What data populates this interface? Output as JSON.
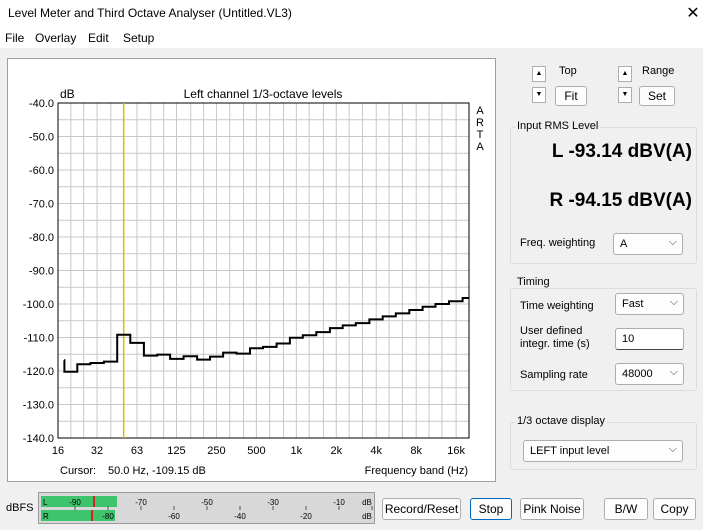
{
  "window": {
    "title": "Level Meter and Third Octave Analyser (Untitled.VL3)",
    "close_glyph": "✕"
  },
  "menu": [
    "File",
    "Overlay",
    "Edit",
    "Setup"
  ],
  "plot": {
    "unit_label": "dB",
    "title": "Left channel 1/3-octave levels",
    "arta_letters": [
      "A",
      "R",
      "T",
      "A"
    ],
    "cursor_text": "Cursor:",
    "cursor_value": "50.0 Hz, -109.15 dB",
    "xlabel": "Frequency band (Hz)",
    "colors": {
      "trace": "#000000",
      "cursor": "#d4c400",
      "grid": "#c8c8c8"
    }
  },
  "chart_data": {
    "type": "line",
    "step": true,
    "title": "Left channel 1/3-octave levels",
    "xlabel": "Frequency band (Hz)",
    "ylabel": "dB",
    "ylim": [
      -140,
      -40
    ],
    "yticks": [
      "-40.0",
      "-50.0",
      "-60.0",
      "-70.0",
      "-80.0",
      "-90.0",
      "-100.0",
      "-110.0",
      "-120.0",
      "-130.0",
      "-140.0"
    ],
    "xticks": [
      "16",
      "32",
      "63",
      "125",
      "250",
      "500",
      "1k",
      "2k",
      "4k",
      "8k",
      "16k"
    ],
    "grid": true,
    "cursor_hz": 50,
    "x": [
      16,
      20,
      25,
      31.5,
      40,
      50,
      63,
      80,
      100,
      125,
      160,
      200,
      250,
      315,
      400,
      500,
      630,
      800,
      1000,
      1250,
      1600,
      2000,
      2500,
      3150,
      4000,
      5000,
      6300,
      8000,
      10000,
      12500,
      16000,
      20000
    ],
    "series": [
      {
        "values": [
          -116.8,
          -120.2,
          -118.0,
          -117.6,
          -117.2,
          -109.2,
          -111.6,
          -115.4,
          -115.1,
          -116.4,
          -115.6,
          -116.6,
          -115.7,
          -114.5,
          -114.8,
          -113.2,
          -112.8,
          -111.8,
          -110.1,
          -109.3,
          -108.4,
          -107.2,
          -106.4,
          -105.7,
          -104.6,
          -103.7,
          -102.8,
          -101.8,
          -100.8,
          -100.0,
          -99.2,
          -98.2
        ]
      }
    ]
  },
  "controls": {
    "top_label": "Top",
    "range_label": "Range",
    "fit_button": "Fit",
    "set_button": "Set",
    "spin_up": "▲",
    "spin_down": "▼"
  },
  "rms": {
    "group_label": "Input RMS Level",
    "left_reading": "L -93.14 dBV(A)",
    "right_reading": "R -94.15 dBV(A)",
    "freq_weighting_label": "Freq. weighting",
    "freq_weighting_value": "A"
  },
  "timing": {
    "group_label": "Timing",
    "time_weighting_label": "Time weighting",
    "time_weighting_value": "Fast",
    "user_time_label_line1": "User defined",
    "user_time_label_line2": "integr. time (s)",
    "user_time_value": "10",
    "sampling_rate_label": "Sampling rate",
    "sampling_rate_value": "48000"
  },
  "octave_display": {
    "group_label": "1/3 octave display",
    "value": "LEFT input level"
  },
  "meter": {
    "label": "dBFS",
    "channel_l": "L",
    "channel_r": "R",
    "top_scale": [
      "-90",
      "-70",
      "-50",
      "-30",
      "-10",
      "dB"
    ],
    "bottom_scale": [
      "-80",
      "-60",
      "-40",
      "-20",
      "dB"
    ],
    "left_level_fraction": 0.085,
    "right_level_fraction": 0.08,
    "colors": {
      "bar": "#3ec46d",
      "peak": "#e02020"
    }
  },
  "buttons": {
    "record_reset": "Record/Reset",
    "stop": "Stop",
    "pink_noise": "Pink Noise",
    "bw": "B/W",
    "copy": "Copy"
  },
  "chevron": "⌵"
}
